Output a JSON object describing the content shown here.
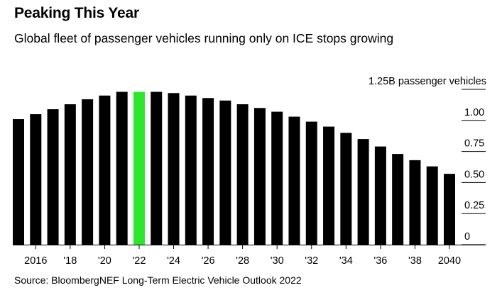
{
  "title": "Peaking This Year",
  "subtitle": "Global fleet of passenger vehicles running only on ICE stops growing",
  "source": "Source: BloombergNEF Long-Term Electric Vehicle Outlook 2022",
  "colors": {
    "bar": "#000000",
    "highlight": "#2ee62e",
    "grid": "#000000"
  },
  "chart_data": {
    "type": "bar",
    "title": "Peaking This Year",
    "ylabel": "1.25B passenger vehicles",
    "xlabel": "",
    "ylim": [
      0,
      1.25
    ],
    "highlight_category": "2022",
    "categories": [
      "2015",
      "2016",
      "2017",
      "2018",
      "2019",
      "2020",
      "2021",
      "2022",
      "2023",
      "2024",
      "2025",
      "2026",
      "2027",
      "2028",
      "2029",
      "2030",
      "2031",
      "2032",
      "2033",
      "2034",
      "2035",
      "2036",
      "2037",
      "2038",
      "2039",
      "2040"
    ],
    "values": [
      1.01,
      1.05,
      1.09,
      1.13,
      1.17,
      1.2,
      1.23,
      1.23,
      1.23,
      1.22,
      1.2,
      1.18,
      1.16,
      1.13,
      1.1,
      1.07,
      1.03,
      0.99,
      0.95,
      0.9,
      0.85,
      0.79,
      0.73,
      0.68,
      0.63,
      0.57
    ],
    "x_tick_labels": [
      {
        "category": "2016",
        "label": "2016"
      },
      {
        "category": "2018",
        "label": "'18"
      },
      {
        "category": "2020",
        "label": "'20"
      },
      {
        "category": "2022",
        "label": "'22"
      },
      {
        "category": "2024",
        "label": "'24"
      },
      {
        "category": "2026",
        "label": "'26"
      },
      {
        "category": "2028",
        "label": "'28"
      },
      {
        "category": "2030",
        "label": "'30"
      },
      {
        "category": "2032",
        "label": "'32"
      },
      {
        "category": "2034",
        "label": "'34"
      },
      {
        "category": "2036",
        "label": "'36"
      },
      {
        "category": "2038",
        "label": "'38"
      },
      {
        "category": "2040",
        "label": "2040"
      }
    ],
    "y_ticks": [
      {
        "value": 1.25,
        "label": "1.25B passenger vehicles"
      },
      {
        "value": 1.0,
        "label": "1.00"
      },
      {
        "value": 0.75,
        "label": "0.75"
      },
      {
        "value": 0.5,
        "label": "0.50"
      },
      {
        "value": 0.25,
        "label": "0.25"
      },
      {
        "value": 0,
        "label": "0"
      }
    ],
    "grid": true
  }
}
